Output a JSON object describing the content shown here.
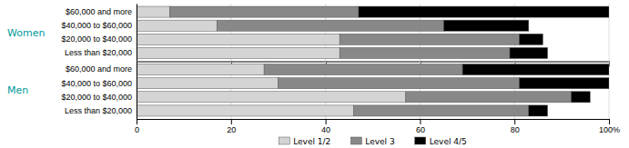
{
  "chart_data": [
    {
      "type": "bar",
      "orientation": "horizontal",
      "stacked": true,
      "title": "Women",
      "categories": [
        "$60,000 and more",
        "$40,000 to $60,000",
        "$20,000 to $40,000",
        "Less than $20,000"
      ],
      "series": [
        {
          "color": "#d4d4d4",
          "values": [
            7,
            17,
            43,
            43
          ]
        },
        {
          "color": "#888888",
          "values": [
            40,
            48,
            38,
            36
          ]
        },
        {
          "color": "#000000",
          "values": [
            53,
            18,
            5,
            8
          ]
        }
      ],
      "xlim": [
        0,
        100
      ],
      "xticks": [
        0,
        20,
        40,
        60,
        80,
        100
      ],
      "grid": true,
      "tick_labels": "y"
    },
    {
      "type": "bar",
      "orientation": "horizontal",
      "stacked": true,
      "title": "Men",
      "categories": [
        "$60,000 and more",
        "$40,000 to $60,000",
        "$20,000 to $40,000",
        "Less than $20,000"
      ],
      "series": [
        {
          "name": "Level 1/2",
          "color": "#d4d4d4",
          "values": [
            27,
            30,
            57,
            46
          ]
        },
        {
          "name": "Level 3",
          "color": "#888888",
          "values": [
            42,
            51,
            35,
            37
          ]
        },
        {
          "name": "Level 4/5",
          "color": "#000000",
          "values": [
            31,
            19,
            4,
            4
          ]
        }
      ],
      "xlim": [
        0,
        100
      ],
      "xticks": [
        0,
        20,
        40,
        60,
        80,
        {
          "value": 100,
          "label": "100%"
        }
      ],
      "grid": true,
      "legend": "bottom"
    }
  ]
}
